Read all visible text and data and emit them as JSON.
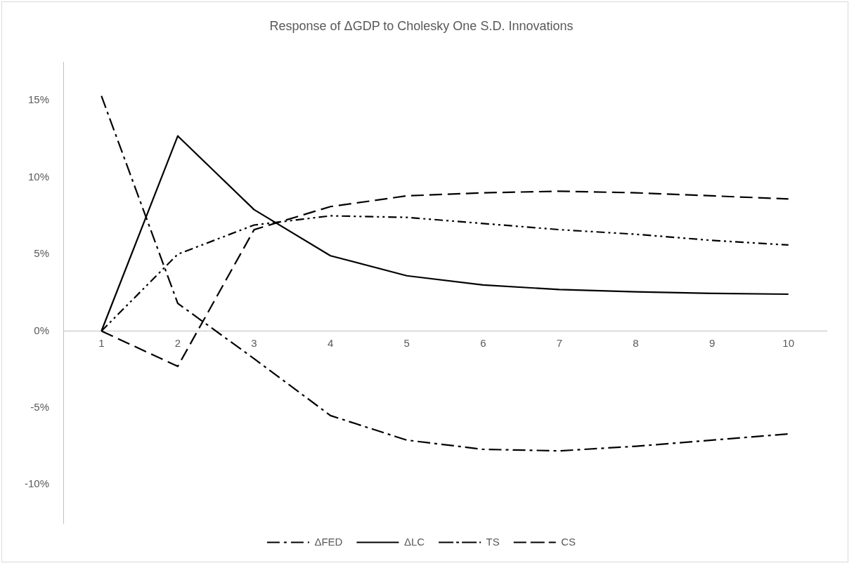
{
  "chart_data": {
    "type": "line",
    "title": "Response of ΔGDP to Cholesky One S.D. Innovations",
    "categories": [
      "1",
      "2",
      "3",
      "4",
      "5",
      "6",
      "7",
      "8",
      "9",
      "10"
    ],
    "series": [
      {
        "name": "ΔFED",
        "color": "#000000",
        "line_style": "dashdot",
        "values": [
          15.3,
          1.8,
          -1.8,
          -5.5,
          -7.1,
          -7.7,
          -7.8,
          -7.5,
          -7.1,
          -6.7
        ]
      },
      {
        "name": "ΔLC",
        "color": "#000000",
        "line_style": "solid",
        "values": [
          0,
          12.7,
          7.9,
          4.9,
          3.6,
          3.0,
          2.7,
          2.55,
          2.45,
          2.4
        ]
      },
      {
        "name": "TS",
        "color": "#000000",
        "line_style": "dashdotdot",
        "values": [
          0,
          5.0,
          6.9,
          7.5,
          7.4,
          7.0,
          6.6,
          6.3,
          5.9,
          5.6
        ]
      },
      {
        "name": "CS",
        "color": "#000000",
        "line_style": "dashed",
        "values": [
          0,
          -2.3,
          6.6,
          8.1,
          8.8,
          9.0,
          9.1,
          9.0,
          8.8,
          8.6
        ]
      }
    ],
    "ylim": [
      -12.5,
      17.5
    ],
    "yticks": [
      {
        "value": -10,
        "label": "-10%"
      },
      {
        "value": -5,
        "label": "-5%"
      },
      {
        "value": 0,
        "label": "0%"
      },
      {
        "value": 5,
        "label": "5%"
      },
      {
        "value": 10,
        "label": "10%"
      },
      {
        "value": 15,
        "label": "15%"
      }
    ],
    "grid": false,
    "legend": "bottom",
    "marker": "none"
  }
}
